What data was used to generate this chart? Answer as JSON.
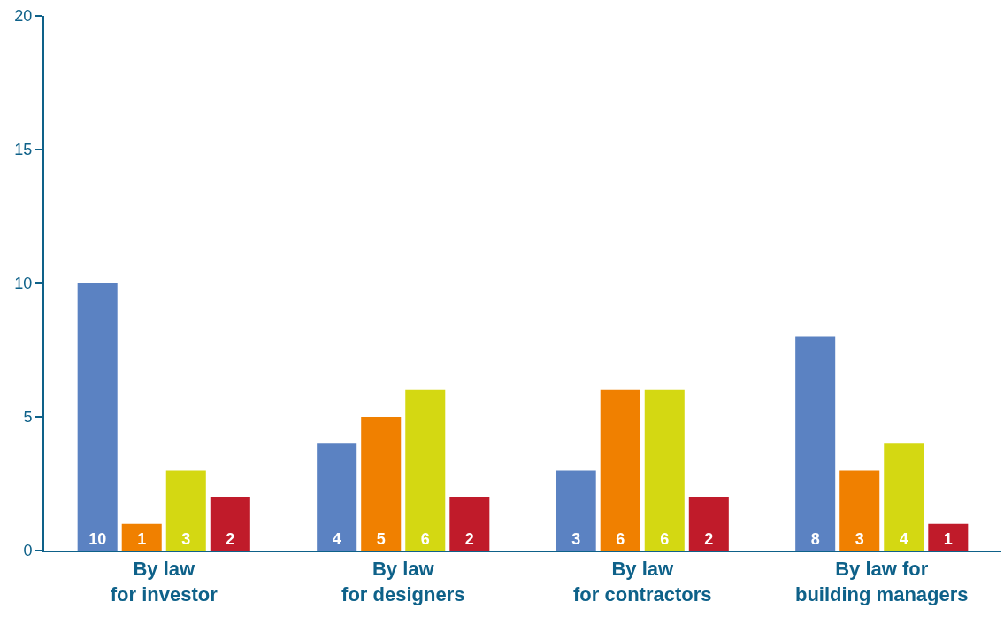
{
  "chart_data": {
    "type": "bar",
    "categories": [
      "By law\nfor investor",
      "By law\nfor designers",
      "By law\nfor contractors",
      "By law for\nbuilding managers"
    ],
    "series": [
      {
        "color": "#5b82c2",
        "values": [
          10,
          4,
          3,
          8
        ]
      },
      {
        "color": "#f08000",
        "values": [
          1,
          5,
          6,
          3
        ]
      },
      {
        "color": "#d4d812",
        "values": [
          3,
          6,
          6,
          4
        ]
      },
      {
        "color": "#c01b2a",
        "values": [
          2,
          2,
          2,
          1
        ]
      }
    ],
    "ylim": [
      0,
      20
    ],
    "yticks": [
      0,
      5,
      10,
      15,
      20
    ],
    "grid": false,
    "data_labels": true
  }
}
